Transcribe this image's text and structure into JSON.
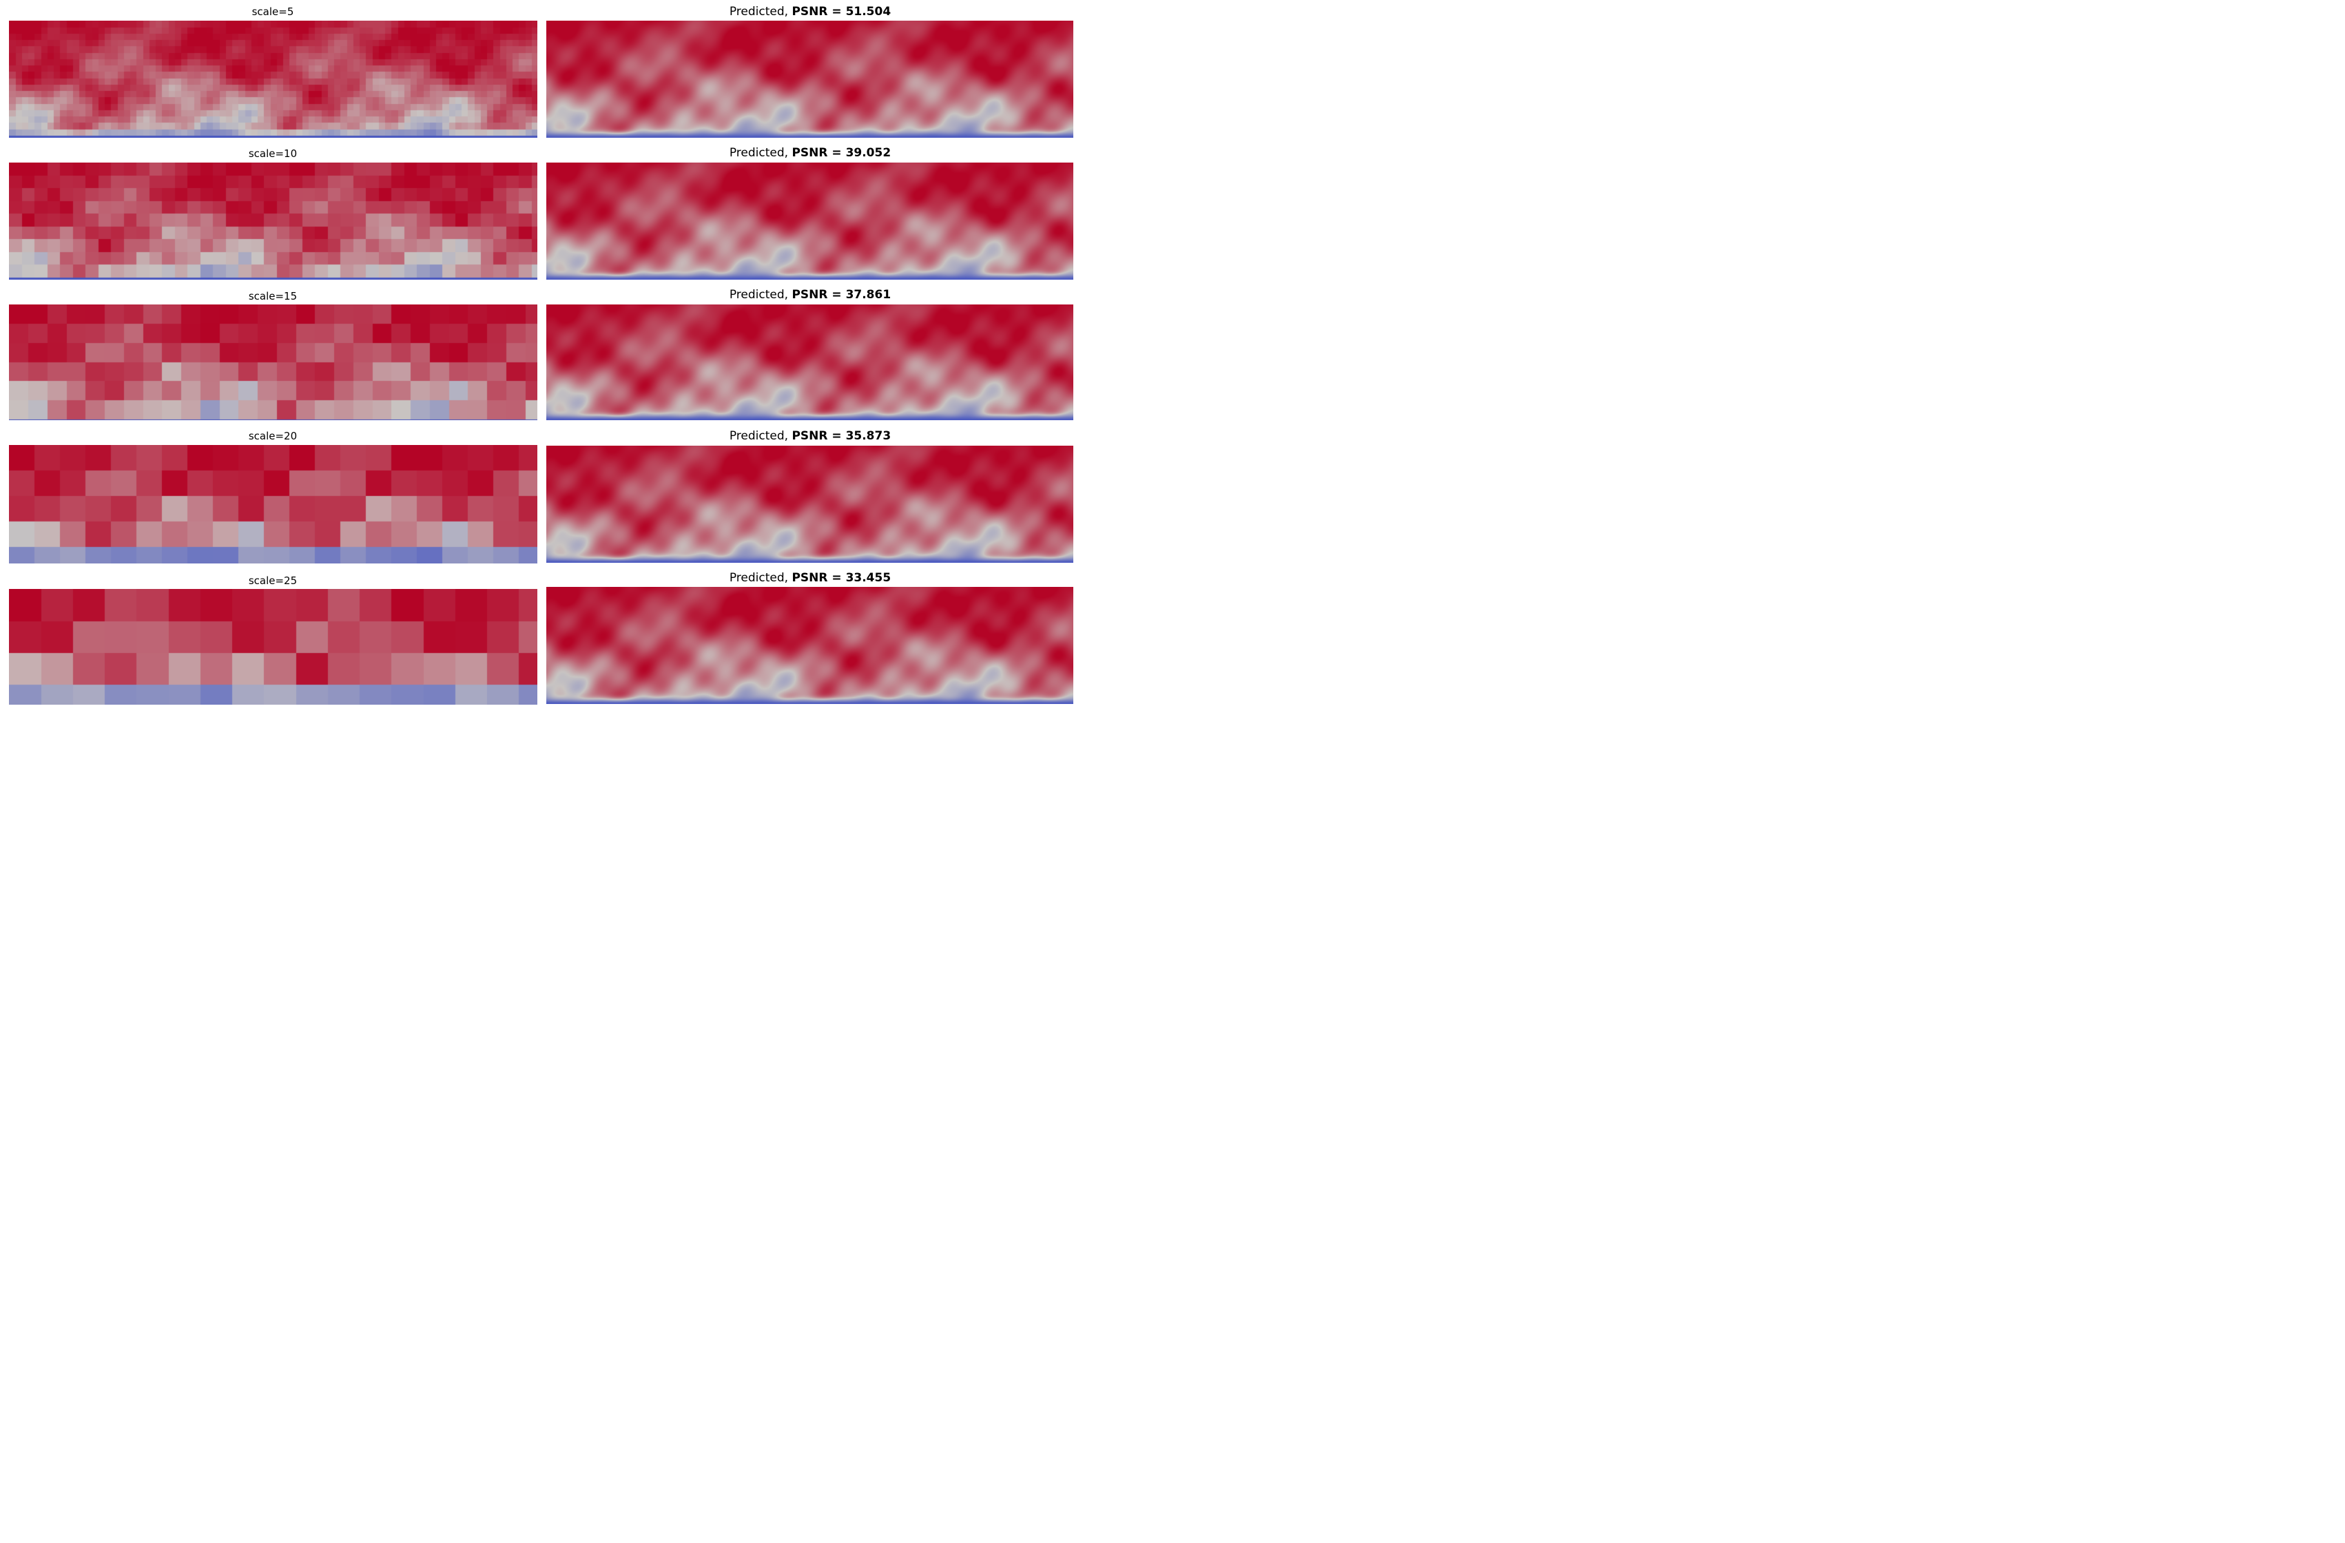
{
  "rows": [
    {
      "input_label": "scale=5",
      "output_prefix": "Predicted, ",
      "metric_label": "PSNR = 51.504",
      "block": 5
    },
    {
      "input_label": "scale=10",
      "output_prefix": "Predicted, ",
      "metric_label": "PSNR = 39.052",
      "block": 10
    },
    {
      "input_label": "scale=15",
      "output_prefix": "Predicted, ",
      "metric_label": "PSNR = 37.861",
      "block": 15
    },
    {
      "input_label": "scale=20",
      "output_prefix": "Predicted, ",
      "metric_label": "PSNR = 35.873",
      "block": 20
    },
    {
      "input_label": "scale=25",
      "output_prefix": "Predicted, ",
      "metric_label": "PSNR = 33.455",
      "block": 25
    }
  ],
  "colormap": {
    "low": "#3b4cc0",
    "mid": "#c8c4c2",
    "high": "#b40426"
  }
}
